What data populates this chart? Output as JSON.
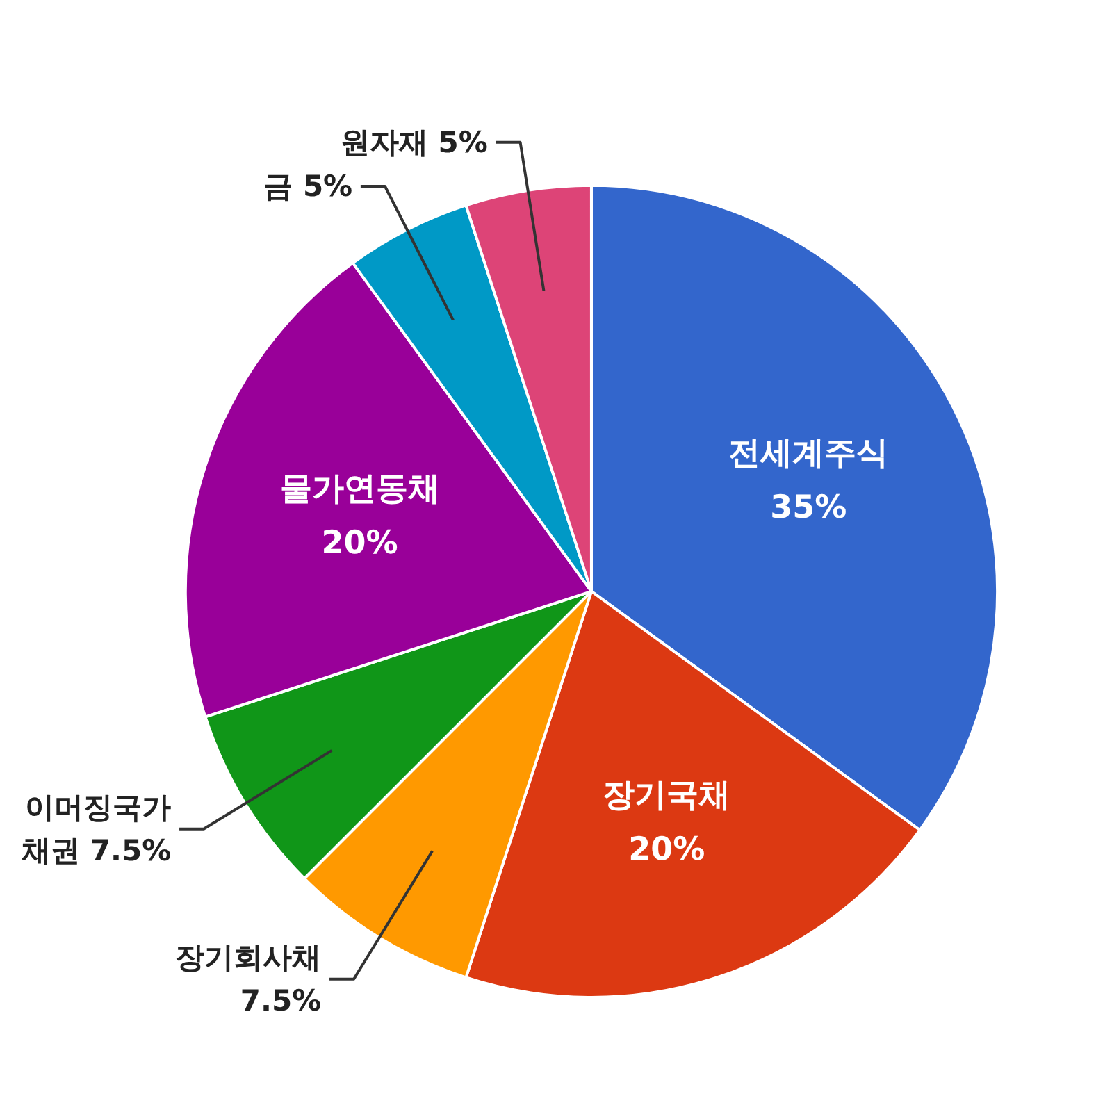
{
  "chart_data": {
    "type": "pie",
    "categories": [
      "전세계주식",
      "장기국채",
      "장기회사채",
      "이머징국가\n채권",
      "물가연동채",
      "금",
      "원자재"
    ],
    "values": [
      35,
      20,
      7.5,
      7.5,
      20,
      5,
      5
    ],
    "colors": [
      "#3366cc",
      "#dc3912",
      "#ff9900",
      "#109618",
      "#990099",
      "#0099c6",
      "#dd4477"
    ],
    "value_labels": [
      "35%",
      "20%",
      "7.5%",
      "7.5%",
      "20%",
      "5%",
      "5%"
    ]
  }
}
